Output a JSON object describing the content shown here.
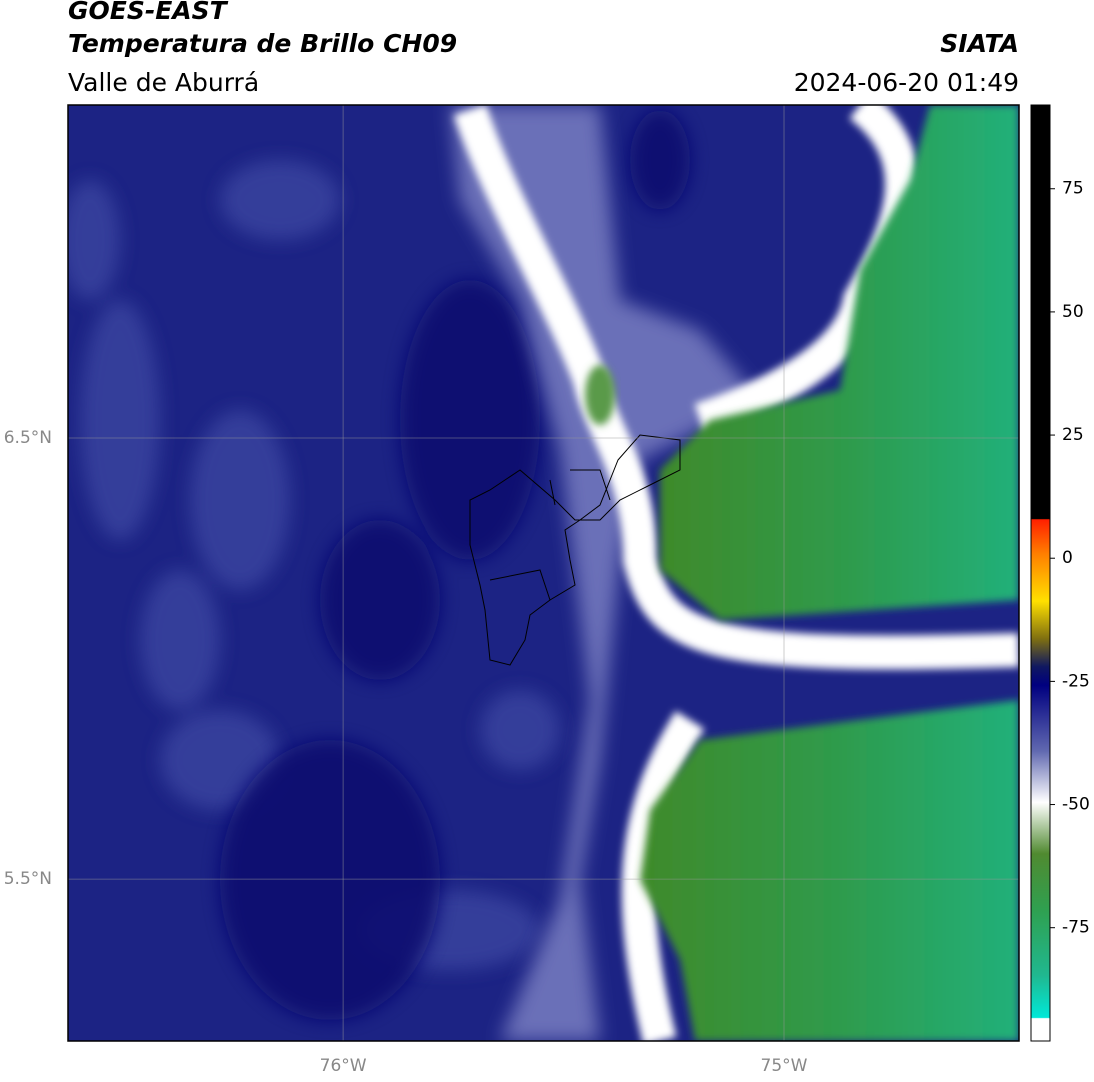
{
  "header": {
    "title": "GOES-EAST",
    "subtitle": "Temperatura de Brillo CH09",
    "source": "SIATA",
    "region": "Valle de Aburrá",
    "datetime": "2024-06-20 01:49"
  },
  "map": {
    "xlim": [
      -76.624,
      -74.467
    ],
    "ylim": [
      5.133,
      7.255
    ],
    "xticks": [
      {
        "value": -76,
        "label": "76°W"
      },
      {
        "value": -75,
        "label": "75°W"
      }
    ],
    "yticks": [
      {
        "value": 6.5,
        "label": "6.5°N"
      },
      {
        "value": 5.5,
        "label": "5.5°N"
      }
    ]
  },
  "colorbar": {
    "lim": [
      -98,
      92
    ],
    "ticks": [
      75,
      50,
      25,
      0,
      -25,
      -50,
      -75
    ]
  }
}
